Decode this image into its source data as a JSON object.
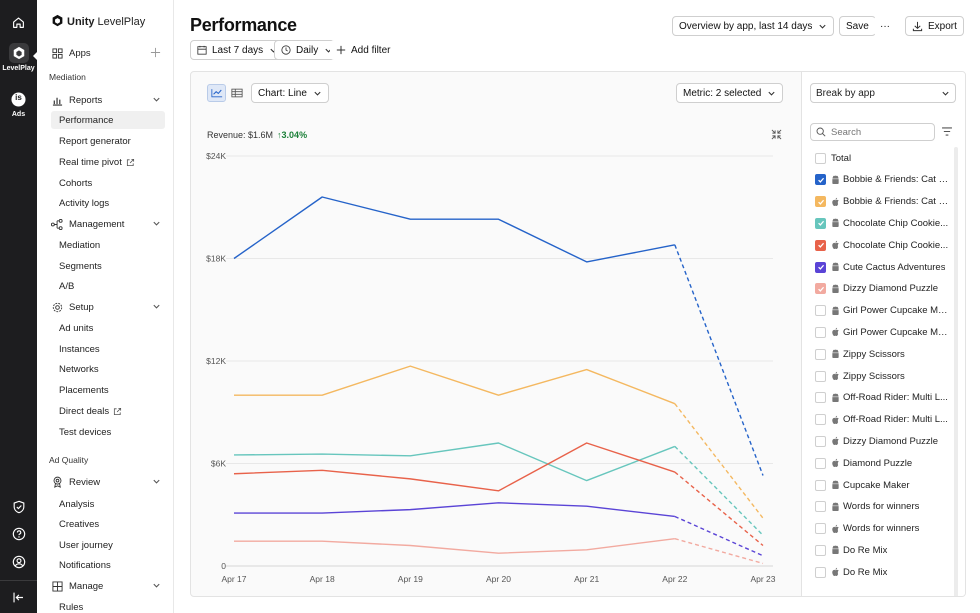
{
  "rail": {
    "levelplay_label": "LevelPlay",
    "ads_label": "Ads",
    "ads_badge": "is"
  },
  "sidebar": {
    "logo_brand": "Unity",
    "logo_product": "LevelPlay",
    "apps_label": "Apps",
    "mediation_section": "Mediation",
    "reports": {
      "label": "Reports",
      "items": [
        "Performance",
        "Report generator",
        "Real time pivot",
        "Cohorts",
        "Activity logs"
      ]
    },
    "management": {
      "label": "Management",
      "items": [
        "Mediation",
        "Segments",
        "A/B"
      ]
    },
    "setup": {
      "label": "Setup",
      "items": [
        "Ad units",
        "Instances",
        "Networks",
        "Placements",
        "Direct deals",
        "Test devices"
      ]
    },
    "ad_quality_section": "Ad Quality",
    "review": {
      "label": "Review",
      "items": [
        "Analysis",
        "Creatives",
        "User journey",
        "Notifications"
      ]
    },
    "manage": {
      "label": "Manage",
      "items": [
        "Rules"
      ]
    }
  },
  "header": {
    "title": "Performance",
    "view_select": "Overview by app, last 14 days",
    "save_label": "Save",
    "more_label": "···",
    "export_label": "Export"
  },
  "filters": {
    "date_range": "Last 7 days",
    "granularity": "Daily",
    "add_filter": "Add filter"
  },
  "chart_controls": {
    "chart_type": "Chart: Line",
    "metric": "Metric: 2 selected",
    "revenue_label": "Revenue: $1.6M",
    "revenue_delta": "↑3.04%"
  },
  "chart_data": {
    "type": "line",
    "x": [
      "Apr 17",
      "Apr 18",
      "Apr 19",
      "Apr 20",
      "Apr 21",
      "Apr 22",
      "Apr 23"
    ],
    "ylim": [
      0,
      24000
    ],
    "yticks": [
      0,
      6000,
      12000,
      18000,
      24000
    ],
    "ytick_labels": [
      "0",
      "$6K",
      "$12K",
      "$18K",
      "$24K"
    ],
    "dashed_from_index": 5,
    "grid": "horizontal",
    "series": [
      {
        "color": "#2563c9",
        "values": [
          18000,
          21600,
          20300,
          20300,
          17800,
          18800,
          5300
        ]
      },
      {
        "color": "#f4b860",
        "values": [
          10000,
          10000,
          11700,
          10000,
          11500,
          9500,
          2800
        ]
      },
      {
        "color": "#67c6bd",
        "values": [
          6500,
          6550,
          6450,
          7200,
          5000,
          7000,
          1800
        ]
      },
      {
        "color": "#e8624a",
        "values": [
          5400,
          5600,
          5100,
          4400,
          7200,
          5500,
          1200
        ]
      },
      {
        "color": "#5a44d6",
        "values": [
          3100,
          3100,
          3300,
          3700,
          3500,
          2900,
          600
        ]
      },
      {
        "color": "#f2aaa0",
        "values": [
          1450,
          1450,
          1200,
          750,
          950,
          1600,
          150
        ]
      }
    ]
  },
  "break_by": {
    "label": "Break by app",
    "search_placeholder": "Search",
    "apps": [
      {
        "name": "Total",
        "platform": "none",
        "checked": false,
        "color": ""
      },
      {
        "name": "Bobbie & Friends: Cat L...",
        "platform": "android",
        "checked": true,
        "color": "#2563c9"
      },
      {
        "name": "Bobbie & Friends: Cat L...",
        "platform": "apple",
        "checked": true,
        "color": "#f4b860"
      },
      {
        "name": "Chocolate Chip Cookie...",
        "platform": "android",
        "checked": true,
        "color": "#67c6bd"
      },
      {
        "name": "Chocolate Chip Cookie...",
        "platform": "apple",
        "checked": true,
        "color": "#e8624a"
      },
      {
        "name": "Cute Cactus Adventures",
        "platform": "android",
        "checked": true,
        "color": "#5a44d6"
      },
      {
        "name": "Dizzy Diamond Puzzle",
        "platform": "android",
        "checked": true,
        "color": "#f2aaa0"
      },
      {
        "name": "Girl Power Cupcake Ma...",
        "platform": "android",
        "checked": false,
        "color": ""
      },
      {
        "name": "Girl Power Cupcake Ma...",
        "platform": "apple",
        "checked": false,
        "color": ""
      },
      {
        "name": "Zippy Scissors",
        "platform": "android",
        "checked": false,
        "color": ""
      },
      {
        "name": "Zippy Scissors",
        "platform": "apple",
        "checked": false,
        "color": ""
      },
      {
        "name": "Off-Road Rider: Multi L...",
        "platform": "android",
        "checked": false,
        "color": ""
      },
      {
        "name": "Off-Road Rider: Multi L...",
        "platform": "apple",
        "checked": false,
        "color": ""
      },
      {
        "name": "Dizzy Diamond Puzzle",
        "platform": "apple",
        "checked": false,
        "color": ""
      },
      {
        "name": "Diamond Puzzle",
        "platform": "apple",
        "checked": false,
        "color": ""
      },
      {
        "name": "Cupcake Maker",
        "platform": "android",
        "checked": false,
        "color": ""
      },
      {
        "name": "Words for winners",
        "platform": "android",
        "checked": false,
        "color": ""
      },
      {
        "name": "Words for winners",
        "platform": "apple",
        "checked": false,
        "color": ""
      },
      {
        "name": "Do Re Mix",
        "platform": "android",
        "checked": false,
        "color": ""
      },
      {
        "name": "Do Re Mix",
        "platform": "apple",
        "checked": false,
        "color": ""
      }
    ]
  }
}
